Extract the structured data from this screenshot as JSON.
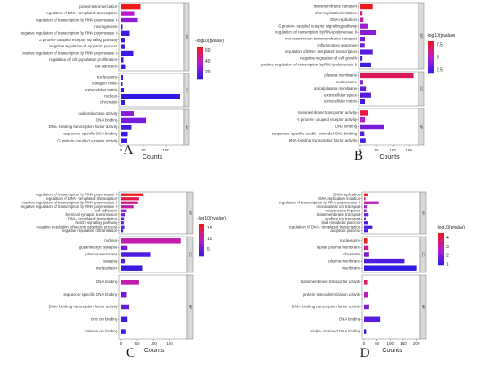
{
  "chart_data": [
    {
      "type": "bar",
      "panel_label": "A",
      "xlabel": "Counts",
      "x_ticks": [
        0,
        50,
        100
      ],
      "xlim": [
        0,
        140
      ],
      "legend_title": "-log10(pvalue)",
      "legend_ticks": [
        20,
        40,
        60
      ],
      "legend_range": [
        8,
        68
      ],
      "groups": [
        {
          "name": "BP",
          "bars": [
            {
              "term": "protein tetramerization",
              "count": 43,
              "color_value": 68
            },
            {
              "term": "regulation of DNA- templated transcription",
              "count": 31,
              "color_value": 38
            },
            {
              "term": "regulation of transcription by RNA polymerase II",
              "count": 37,
              "color_value": 30
            },
            {
              "term": "neurogenesis",
              "count": 3,
              "color_value": 12
            },
            {
              "term": "negative regulation of transcription by RNA polymerase II",
              "count": 19,
              "color_value": 12
            },
            {
              "term": "G protein- coupled receptor signaling pathway",
              "count": 8,
              "color_value": 11
            },
            {
              "term": "negative regulation of apoptotic process",
              "count": 9,
              "color_value": 11
            },
            {
              "term": "positive regulation of transcription by RNA polymerase II",
              "count": 27,
              "color_value": 11
            },
            {
              "term": "regulation of cell population proliferation",
              "count": 5,
              "color_value": 10
            },
            {
              "term": "cell adhesion",
              "count": 11,
              "color_value": 10
            }
          ]
        },
        {
          "name": "CC",
          "bars": [
            {
              "term": "nucleosome",
              "count": 4,
              "color_value": 10
            },
            {
              "term": "collagen trimer",
              "count": 3,
              "color_value": 10
            },
            {
              "term": "extracellular matrix",
              "count": 6,
              "color_value": 10
            },
            {
              "term": "nucleus",
              "count": 132,
              "color_value": 9
            },
            {
              "term": "chromatin",
              "count": 8,
              "color_value": 9
            }
          ]
        },
        {
          "name": "MF",
          "bars": [
            {
              "term": "oxidoreductase activity",
              "count": 30,
              "color_value": 28
            },
            {
              "term": "DNA binding",
              "count": 56,
              "color_value": 24
            },
            {
              "term": "DNA- binding transcription factor activity",
              "count": 23,
              "color_value": 14
            },
            {
              "term": "sequence- specific DNA binding",
              "count": 15,
              "color_value": 11
            },
            {
              "term": "G protein- coupled receptor activity",
              "count": 14,
              "color_value": 10
            }
          ]
        }
      ]
    },
    {
      "type": "bar",
      "panel_label": "B",
      "xlabel": "Counts",
      "x_ticks": [
        0,
        50,
        100,
        150
      ],
      "xlim": [
        0,
        180
      ],
      "legend_title": "-log10(pvalue)",
      "legend_ticks": [
        2.5,
        5.0,
        7.5
      ],
      "legend_range": [
        1.8,
        8.2
      ],
      "groups": [
        {
          "name": "BP",
          "bars": [
            {
              "term": "transmembrane transport",
              "count": 38,
              "color_value": 8.2
            },
            {
              "term": "DNA replication initiation",
              "count": 6,
              "color_value": 6.5
            },
            {
              "term": "DNA replication",
              "count": 9,
              "color_value": 5.5
            },
            {
              "term": "G protein- coupled receptor signaling pathway",
              "count": 22,
              "color_value": 4.5
            },
            {
              "term": "regulation of transcription by RNA polymerase II",
              "count": 50,
              "color_value": 4.0
            },
            {
              "term": "monoatomic ion transmembrane transport",
              "count": 14,
              "color_value": 3.5
            },
            {
              "term": "inflammatory response",
              "count": 13,
              "color_value": 3.2
            },
            {
              "term": "regulation of DNA- templated transcription",
              "count": 38,
              "color_value": 2.8
            },
            {
              "term": "negative regulation of cell growth",
              "count": 6,
              "color_value": 2.6
            },
            {
              "term": "positive regulation of transcription by RNA polymerase II",
              "count": 33,
              "color_value": 2.4
            }
          ]
        },
        {
          "name": "CC",
          "bars": [
            {
              "term": "plasma membrane",
              "count": 165,
              "color_value": 7.0
            },
            {
              "term": "nucleosome",
              "count": 8,
              "color_value": 4.0
            },
            {
              "term": "apical plasma membrane",
              "count": 17,
              "color_value": 3.2
            },
            {
              "term": "extracellular space",
              "count": 33,
              "color_value": 2.8
            },
            {
              "term": "extracellular matrix",
              "count": 14,
              "color_value": 2.4
            }
          ]
        },
        {
          "name": "MF",
          "bars": [
            {
              "term": "transmembrane transporter activity",
              "count": 24,
              "color_value": 7.5
            },
            {
              "term": "G protein- coupled receptor activity",
              "count": 14,
              "color_value": 5.0
            },
            {
              "term": "DNA binding",
              "count": 72,
              "color_value": 3.5
            },
            {
              "term": "sequence- specific double- stranded DNA binding",
              "count": 12,
              "color_value": 2.8
            },
            {
              "term": "DNA- binding transcription factor activity",
              "count": 16,
              "color_value": 2.4
            }
          ]
        }
      ]
    },
    {
      "type": "bar",
      "panel_label": "C",
      "xlabel": "Counts",
      "x_ticks": [
        0,
        50,
        100,
        150
      ],
      "xlim": [
        0,
        205
      ],
      "legend_title": "-log10(pvalue)",
      "legend_ticks": [
        5,
        10,
        15
      ],
      "legend_range": [
        2,
        17
      ],
      "groups": [
        {
          "name": "BP",
          "bars": [
            {
              "term": "regulation of transcription by RNA polymerase II",
              "count": 68,
              "color_value": 17
            },
            {
              "term": "regulation of DNA- templated transcription",
              "count": 55,
              "color_value": 15
            },
            {
              "term": "positive regulation of transcription by RNA polymerase II",
              "count": 52,
              "color_value": 12
            },
            {
              "term": "negative regulation of transcription by RNA polymerase II",
              "count": 38,
              "color_value": 11
            },
            {
              "term": "cell adhesion",
              "count": 18,
              "color_value": 7
            },
            {
              "term": "chemical synaptic transmission",
              "count": 12,
              "color_value": 6
            },
            {
              "term": "DNA- templated transcription",
              "count": 9,
              "color_value": 5
            },
            {
              "term": "Notch signaling pathway",
              "count": 8,
              "color_value": 4
            },
            {
              "term": "negative regulation of neuron apoptotic process",
              "count": 10,
              "color_value": 4
            },
            {
              "term": "negative regulation of translation",
              "count": 6,
              "color_value": 3
            }
          ]
        },
        {
          "name": "CC",
          "bars": [
            {
              "term": "nucleus",
              "count": 185,
              "color_value": 11
            },
            {
              "term": "glutamatergic synapse",
              "count": 20,
              "color_value": 6
            },
            {
              "term": "plasma membrane",
              "count": 90,
              "color_value": 4
            },
            {
              "term": "synapse",
              "count": 14,
              "color_value": 4
            },
            {
              "term": "nucleoplasm",
              "count": 65,
              "color_value": 3
            }
          ]
        },
        {
          "name": "MF",
          "bars": [
            {
              "term": "DNA binding",
              "count": 55,
              "color_value": 11
            },
            {
              "term": "sequence- specific DNA binding",
              "count": 18,
              "color_value": 6
            },
            {
              "term": "DNA- binding transcription factor activity",
              "count": 25,
              "color_value": 5
            },
            {
              "term": "zinc ion binding",
              "count": 20,
              "color_value": 3
            },
            {
              "term": "calcium ion binding",
              "count": 16,
              "color_value": 3
            }
          ]
        }
      ]
    },
    {
      "type": "bar",
      "panel_label": "D",
      "xlabel": "Counts",
      "x_ticks": [
        0,
        50,
        100,
        150,
        200
      ],
      "xlim": [
        0,
        215
      ],
      "legend_title": "-log10(pvalue)",
      "legend_ticks": [
        1,
        2,
        3,
        4
      ],
      "legend_range": [
        0.9,
        4.6
      ],
      "groups": [
        {
          "name": "BP",
          "bars": [
            {
              "term": "DNA replication",
              "count": 15,
              "color_value": 4.5
            },
            {
              "term": "DNA replication initiation",
              "count": 5,
              "color_value": 3.5
            },
            {
              "term": "regulation of transcription by RNA polymerase II",
              "count": 57,
              "color_value": 3.0
            },
            {
              "term": "monoatomic ion transport",
              "count": 10,
              "color_value": 2.5
            },
            {
              "term": "response to hypoxia",
              "count": 9,
              "color_value": 2.0
            },
            {
              "term": "transmembrane transport",
              "count": 18,
              "color_value": 1.8
            },
            {
              "term": "sodium ion transport",
              "count": 7,
              "color_value": 1.6
            },
            {
              "term": "lipid metabolic process",
              "count": 16,
              "color_value": 1.4
            },
            {
              "term": "regulation of DNA- templated transcription",
              "count": 32,
              "color_value": 1.3
            },
            {
              "term": "apoptotic process",
              "count": 15,
              "color_value": 1.2
            }
          ]
        },
        {
          "name": "CC",
          "bars": [
            {
              "term": "nucleosome",
              "count": 12,
              "color_value": 4.6
            },
            {
              "term": "apical plasma membrane",
              "count": 18,
              "color_value": 3.5
            },
            {
              "term": "chromatin",
              "count": 20,
              "color_value": 2.0
            },
            {
              "term": "plasma membrane",
              "count": 155,
              "color_value": 1.4
            },
            {
              "term": "membrane",
              "count": 200,
              "color_value": 1.0
            }
          ]
        },
        {
          "name": "MF",
          "bars": [
            {
              "term": "transmembrane transporter activity",
              "count": 12,
              "color_value": 4.0
            },
            {
              "term": "protein heterodimerization activity",
              "count": 15,
              "color_value": 3.0
            },
            {
              "term": "DNA- binding transcription factor activity",
              "count": 20,
              "color_value": 2.0
            },
            {
              "term": "DNA binding",
              "count": 62,
              "color_value": 1.5
            },
            {
              "term": "single- stranded DNA binding",
              "count": 8,
              "color_value": 1.0
            }
          ]
        }
      ]
    }
  ],
  "colors": {
    "low": "#2a1ae6",
    "mid": "#b81cd0",
    "high": "#f01818",
    "strip_fill": "#d9d9d9",
    "panel_border": "#7a7a7a"
  }
}
